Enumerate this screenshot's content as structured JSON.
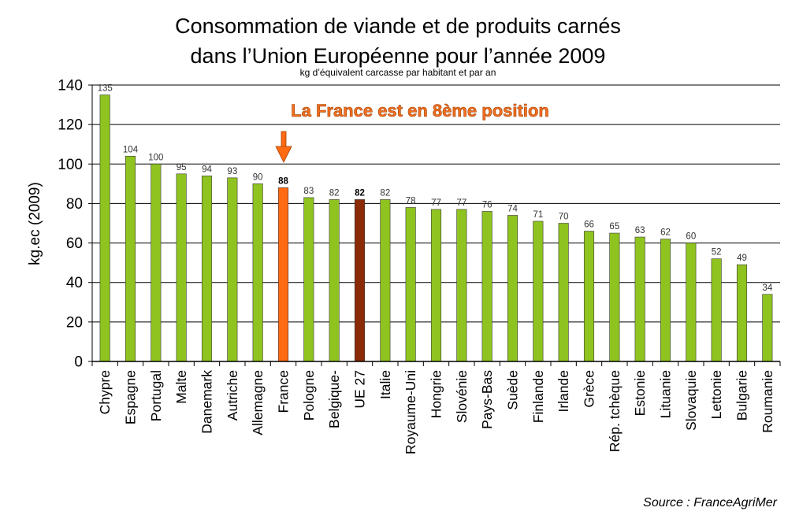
{
  "chart_data": {
    "type": "bar",
    "title": "Consommation de viande et de produits carnés",
    "title_line2": "dans l’Union Européenne pour l’année 2009",
    "subtitle": "kg d’équivalent carcasse par habitant et par an",
    "ylabel": "kg.ec (2009)",
    "ylim": [
      0,
      140
    ],
    "yticks": [
      0,
      20,
      40,
      60,
      80,
      100,
      120,
      140
    ],
    "grid": true,
    "categories": [
      "Chypre",
      "Espagne",
      "Portugal",
      "Malte",
      "Danemark",
      "Autriche",
      "Allemagne",
      "France",
      "Pologne",
      "Belgique-",
      "UE 27",
      "Italie",
      "Royaume-Uni",
      "Hongrie",
      "Slovénie",
      "Pays-Bas",
      "Suède",
      "Finlande",
      "Irlande",
      "Grèce",
      "Rép. tchèque",
      "Estonie",
      "Lituanie",
      "Slovaquie",
      "Lettonie",
      "Bulgarie",
      "Roumanie"
    ],
    "values": [
      135,
      104,
      100,
      95,
      94,
      93,
      90,
      88,
      83,
      82,
      82,
      82,
      78,
      77,
      77,
      76,
      74,
      71,
      70,
      66,
      65,
      63,
      62,
      60,
      52,
      49,
      34
    ],
    "highlight": {
      "France": "#ff6a13",
      "UE 27": "#8b2a06"
    },
    "bold_labels": [
      "France",
      "UE 27"
    ],
    "bar_color": "#8fc31f",
    "annotation": "La France est en 8ème position",
    "annotation_color": "#f36f21",
    "source": "Source : FranceAgriMer"
  }
}
